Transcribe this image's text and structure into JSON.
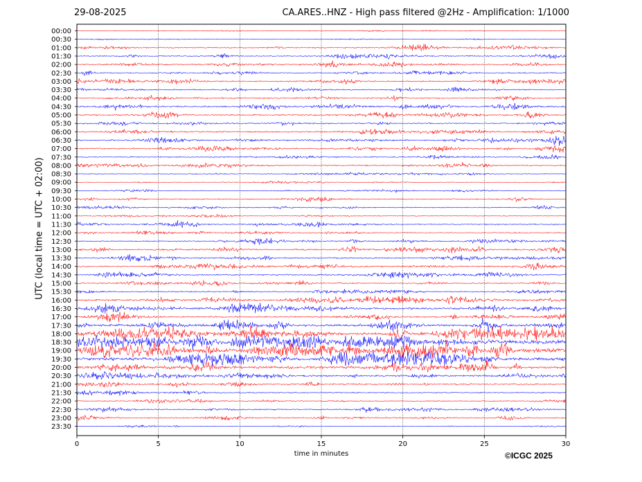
{
  "header": {
    "date": "29-08-2025",
    "title": "CA.ARES..HNZ - High pass filtered @2Hz - Amplification: 1/1000"
  },
  "footer": {
    "copyright": "©ICGC 2025"
  },
  "colors": {
    "trace_a": "#ff0000",
    "trace_b": "#0000ff",
    "grid": "#000000",
    "axis": "#000000"
  },
  "chart_data": {
    "type": "line",
    "chart_kind": "helicorder (seismogram drum plot)",
    "xlabel": "time in minutes",
    "ylabel": "UTC (local time = UTC + 02:00)",
    "xlim": [
      0,
      30
    ],
    "x_ticks": [
      "0",
      "5",
      "10",
      "15",
      "20",
      "25",
      "30"
    ],
    "grid": "vertical dotted lines at 5, 10, 15, 20, 25 minutes",
    "row_labels": [
      "00:00",
      "00:30",
      "01:00",
      "01:30",
      "02:00",
      "02:30",
      "03:00",
      "03:30",
      "04:00",
      "04:30",
      "05:00",
      "05:30",
      "06:00",
      "06:30",
      "07:00",
      "07:30",
      "08:00",
      "08:30",
      "09:00",
      "09:30",
      "10:00",
      "10:30",
      "11:00",
      "11:30",
      "12:00",
      "12:30",
      "13:00",
      "13:30",
      "14:00",
      "14:30",
      "15:00",
      "15:30",
      "16:00",
      "16:30",
      "17:00",
      "17:30",
      "18:00",
      "18:30",
      "19:00",
      "19:30",
      "20:00",
      "20:30",
      "21:00",
      "21:30",
      "22:00",
      "22:30",
      "23:00",
      "23:30"
    ],
    "row_colors": "alternating red (full hours) and blue (half hours)",
    "amplitude_envelope": [
      0.5,
      0.6,
      1.5,
      1.4,
      1.6,
      1.5,
      1.6,
      1.5,
      1.7,
      2.0,
      2.0,
      1.6,
      1.8,
      1.9,
      1.8,
      1.5,
      1.6,
      1.0,
      0.6,
      0.9,
      1.6,
      1.2,
      0.8,
      1.6,
      1.4,
      1.5,
      2.0,
      1.8,
      1.9,
      1.9,
      1.7,
      1.4,
      2.4,
      3.0,
      1.8,
      3.0,
      4.2,
      6.0,
      6.5,
      4.2,
      3.6,
      2.4,
      2.0,
      1.5,
      1.3,
      1.5,
      1.5,
      0.6
    ]
  }
}
